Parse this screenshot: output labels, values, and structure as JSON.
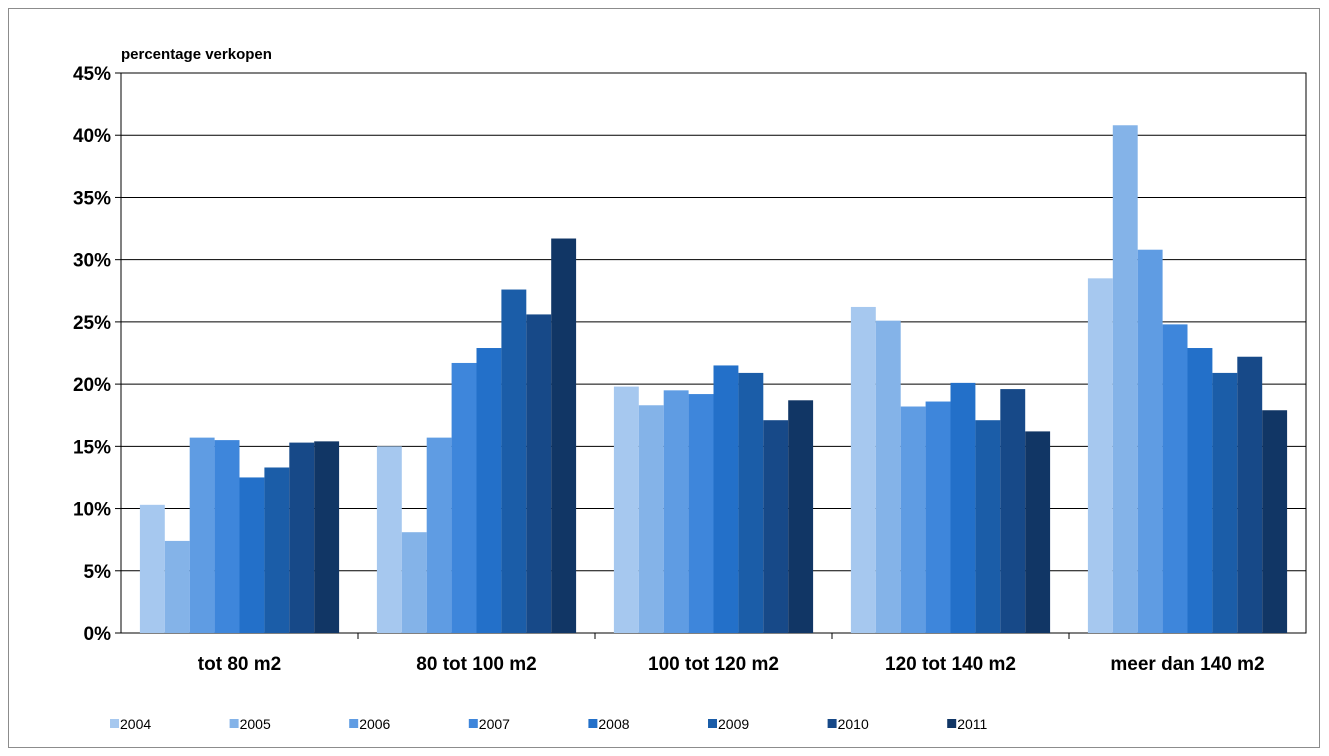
{
  "chart_data": {
    "type": "bar",
    "ylabel": "percentage verkopen",
    "xlabel": "",
    "ylim": [
      0,
      45
    ],
    "yticks": [
      "0%",
      "5%",
      "10%",
      "15%",
      "20%",
      "25%",
      "30%",
      "35%",
      "40%",
      "45%"
    ],
    "grid": true,
    "legend_position": "bottom",
    "categories": [
      "tot 80 m2",
      "80 tot 100 m2",
      "100 tot 120 m2",
      "120 tot 140 m2",
      "meer dan 140 m2"
    ],
    "series": [
      {
        "name": "2004",
        "color": "#a6c8ef",
        "values": [
          10.3,
          15.0,
          19.8,
          26.2,
          28.5
        ]
      },
      {
        "name": "2005",
        "color": "#84b3e8",
        "values": [
          7.4,
          8.1,
          18.3,
          25.1,
          40.8
        ]
      },
      {
        "name": "2006",
        "color": "#5f9ce3",
        "values": [
          15.7,
          15.7,
          19.5,
          18.2,
          30.8
        ]
      },
      {
        "name": "2007",
        "color": "#3e86db",
        "values": [
          15.5,
          21.7,
          19.2,
          18.6,
          24.8
        ]
      },
      {
        "name": "2008",
        "color": "#2370c9",
        "values": [
          12.5,
          22.9,
          21.5,
          20.1,
          22.9
        ]
      },
      {
        "name": "2009",
        "color": "#1b5da8",
        "values": [
          13.3,
          27.6,
          20.9,
          17.1,
          20.9
        ]
      },
      {
        "name": "2010",
        "color": "#174988",
        "values": [
          15.3,
          25.6,
          17.1,
          19.6,
          22.2
        ]
      },
      {
        "name": "2011",
        "color": "#113665",
        "values": [
          15.4,
          31.7,
          18.7,
          16.2,
          17.9
        ]
      }
    ]
  }
}
